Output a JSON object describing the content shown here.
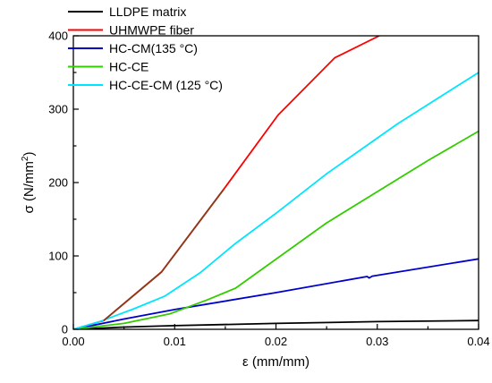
{
  "chart_data": {
    "type": "line",
    "title": "",
    "xlabel": "ε (mm/mm)",
    "ylabel": {
      "main": "σ (N/mm",
      "sup": "2",
      "end": ")"
    },
    "xlim": [
      0,
      0.04
    ],
    "ylim": [
      0,
      400
    ],
    "x_ticks": [
      0,
      0.01,
      0.02,
      0.03,
      0.04
    ],
    "x_tick_labels": [
      "0.00",
      "0.01",
      "0.02",
      "0.03",
      "0.04"
    ],
    "y_ticks": [
      0,
      100,
      200,
      300,
      400
    ],
    "y_tick_labels": [
      "0",
      "100",
      "200",
      "300",
      "400"
    ],
    "grid": false,
    "legend_position": "top-left",
    "series": [
      {
        "name": "LLDPE matrix",
        "color": "#000000",
        "points": [
          [
            0,
            0
          ],
          [
            0.005,
            3
          ],
          [
            0.01,
            5
          ],
          [
            0.02,
            8
          ],
          [
            0.03,
            10.5
          ],
          [
            0.04,
            12
          ]
        ]
      },
      {
        "name": "UHMWPE fiber",
        "color": "#ff0000",
        "points": [
          [
            0,
            0
          ],
          [
            0.003,
            12
          ],
          [
            0.0087,
            78
          ],
          [
            0.0148,
            190
          ],
          [
            0.0202,
            292
          ],
          [
            0.0258,
            370
          ],
          [
            0.0302,
            400
          ]
        ]
      },
      {
        "name": "HC-CM(135 °C)",
        "color": "#0000cc",
        "points": [
          [
            0,
            0
          ],
          [
            0.005,
            14
          ],
          [
            0.01,
            27
          ],
          [
            0.02,
            50
          ],
          [
            0.029,
            72
          ],
          [
            0.0292,
            70
          ],
          [
            0.0295,
            72.5
          ],
          [
            0.04,
            96
          ]
        ]
      },
      {
        "name": "HC-CE",
        "color": "#33cc00",
        "points": [
          [
            0,
            0
          ],
          [
            0.005,
            8
          ],
          [
            0.0095,
            21
          ],
          [
            0.0132,
            40
          ],
          [
            0.016,
            56
          ],
          [
            0.025,
            145
          ],
          [
            0.035,
            230
          ],
          [
            0.04,
            270
          ]
        ]
      },
      {
        "name": "HC-CE-CM (125 °C)",
        "color": "#00e5ff",
        "points": [
          [
            0,
            0
          ],
          [
            0.0025,
            10
          ],
          [
            0.006,
            28
          ],
          [
            0.009,
            45
          ],
          [
            0.0125,
            77
          ],
          [
            0.016,
            117
          ],
          [
            0.02,
            158
          ],
          [
            0.025,
            212
          ],
          [
            0.032,
            280
          ],
          [
            0.04,
            350
          ]
        ]
      }
    ],
    "overlap_segment": {
      "color": "#8b3a1a",
      "points": [
        [
          0.003,
          12
        ],
        [
          0.0087,
          78
        ],
        [
          0.0148,
          190
        ]
      ]
    }
  }
}
